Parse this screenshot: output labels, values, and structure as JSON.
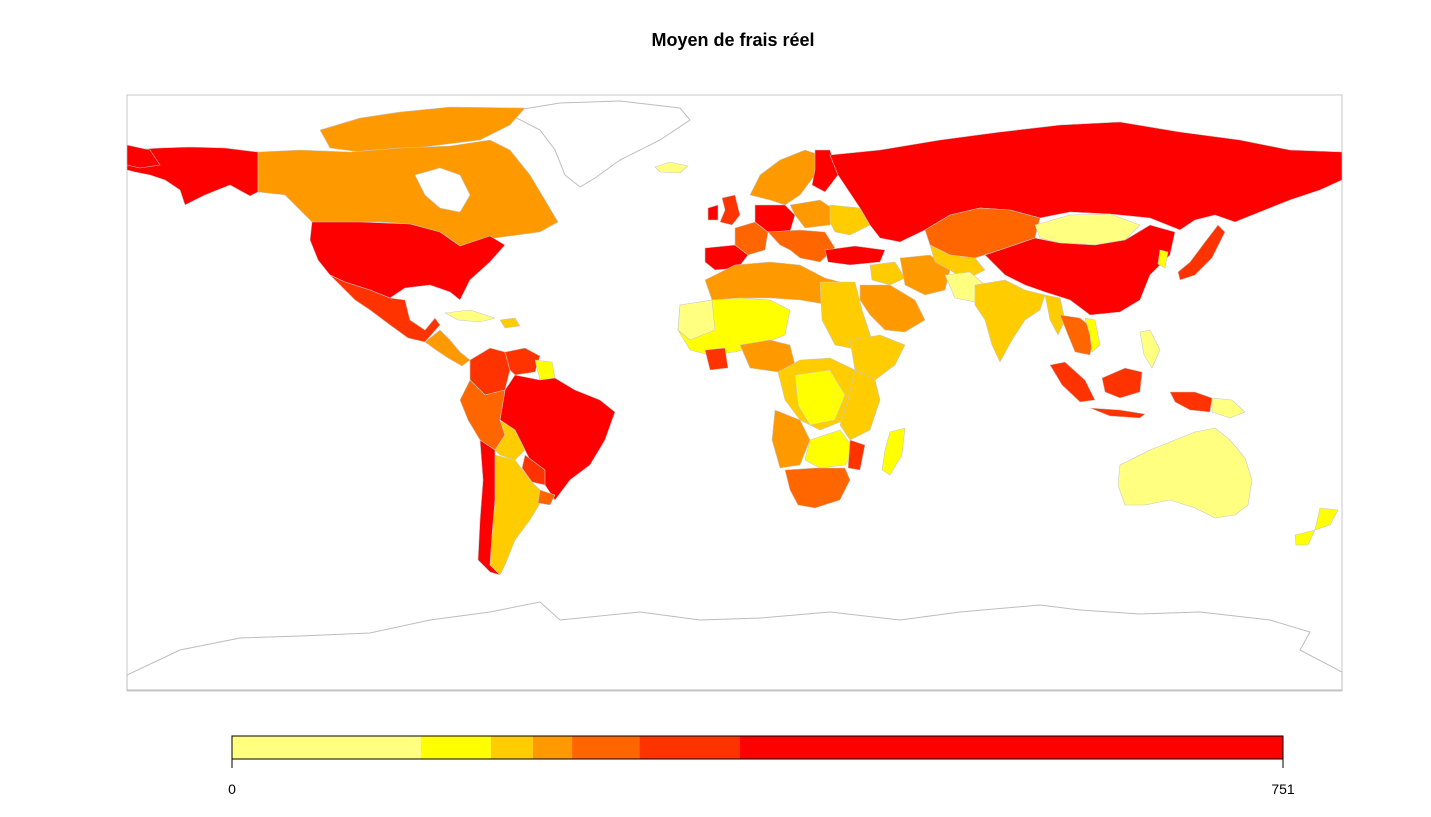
{
  "title": "Moyen de frais réel",
  "legend": {
    "min_label": "0",
    "max_label": "751",
    "min": 0,
    "max": 751,
    "bins": [
      {
        "from": 0,
        "to": 135,
        "color": "#ffff80"
      },
      {
        "from": 135,
        "to": 185,
        "color": "#ffff00"
      },
      {
        "from": 185,
        "to": 215,
        "color": "#ffcc00"
      },
      {
        "from": 215,
        "to": 243,
        "color": "#ff9900"
      },
      {
        "from": 243,
        "to": 291,
        "color": "#ff6600"
      },
      {
        "from": 291,
        "to": 363,
        "color": "#ff3300"
      },
      {
        "from": 363,
        "to": 751,
        "color": "#ff0000"
      }
    ]
  },
  "colors": {
    "c1": "#ffff80",
    "c2": "#ffff00",
    "c3": "#ffcc00",
    "c4": "#ff9900",
    "c5": "#ff6600",
    "c6": "#ff3300",
    "c7": "#ff0000",
    "border": "#c8c8c8",
    "nodata_outline": "#bdbdbd"
  }
}
